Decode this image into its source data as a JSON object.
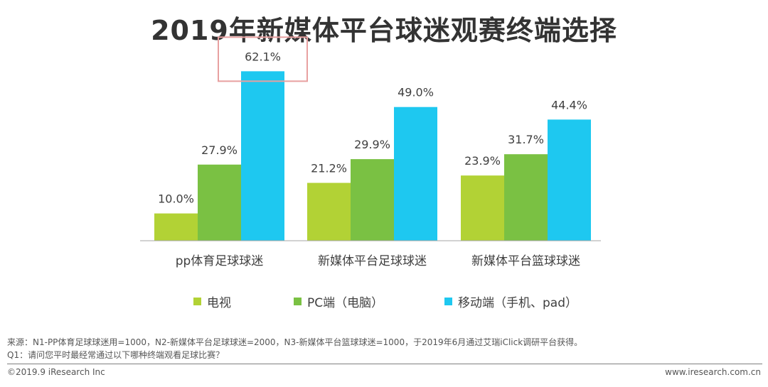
{
  "chart_data": {
    "type": "bar",
    "title": "2019年新媒体平台球迷观赛终端选择",
    "categories": [
      "pp体育足球球迷",
      "新媒体平台足球球迷",
      "新媒体平台篮球球迷"
    ],
    "series": [
      {
        "name": "电视",
        "color": "#b2d235",
        "values": [
          10.0,
          21.2,
          23.9
        ],
        "labels": [
          "10.0%",
          "21.2%",
          "23.9%"
        ]
      },
      {
        "name": "PC端（电脑）",
        "color": "#7ac143",
        "values": [
          27.9,
          29.9,
          31.7
        ],
        "labels": [
          "27.9%",
          "29.9%",
          "31.7%"
        ]
      },
      {
        "name": "移动端（手机、pad）",
        "color": "#1ec8f0",
        "values": [
          62.1,
          49.0,
          44.4
        ],
        "labels": [
          "62.1%",
          "49.0%",
          "44.4%"
        ]
      }
    ],
    "ylim": [
      0,
      70
    ],
    "grid": false,
    "legend_position": "bottom",
    "highlight": {
      "series": 2,
      "category": 0,
      "color": "#e8a0a0"
    }
  },
  "source_note": "来源：N1-PP体育足球球迷用=1000，N2-新媒体平台足球球迷=2000，N3-新媒体平台篮球球迷=1000，于2019年6月通过艾瑞iClick调研平台获得。",
  "question_note": "Q1：请问您平时最经常通过以下哪种终端观看足球比赛？",
  "footer": {
    "copyright": "©2019.9 iResearch Inc",
    "website": "www.iresearch.com.cn"
  }
}
